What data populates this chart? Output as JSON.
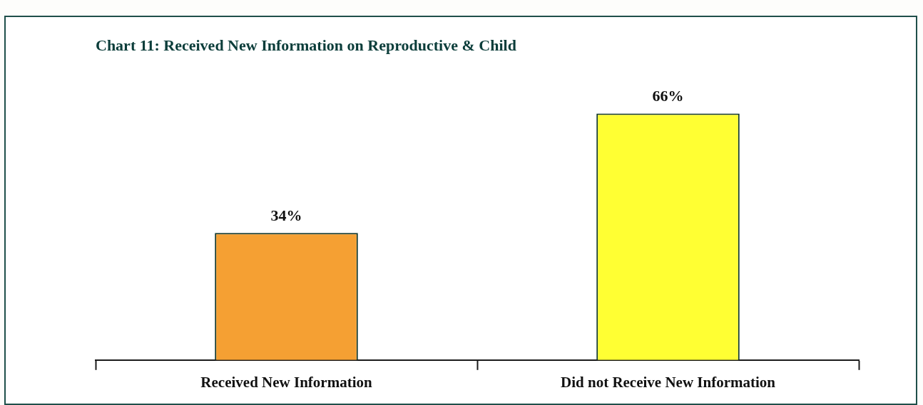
{
  "chart_data": {
    "type": "bar",
    "title": "Chart 11: Received New Information on Reproductive & Child",
    "categories": [
      "Received New Information",
      "Did not Receive New Information"
    ],
    "values": [
      34,
      66
    ],
    "colors": [
      "#f5a033",
      "#ffff33"
    ],
    "value_labels": [
      "34%",
      "66%"
    ],
    "grid": false,
    "legend": false
  }
}
